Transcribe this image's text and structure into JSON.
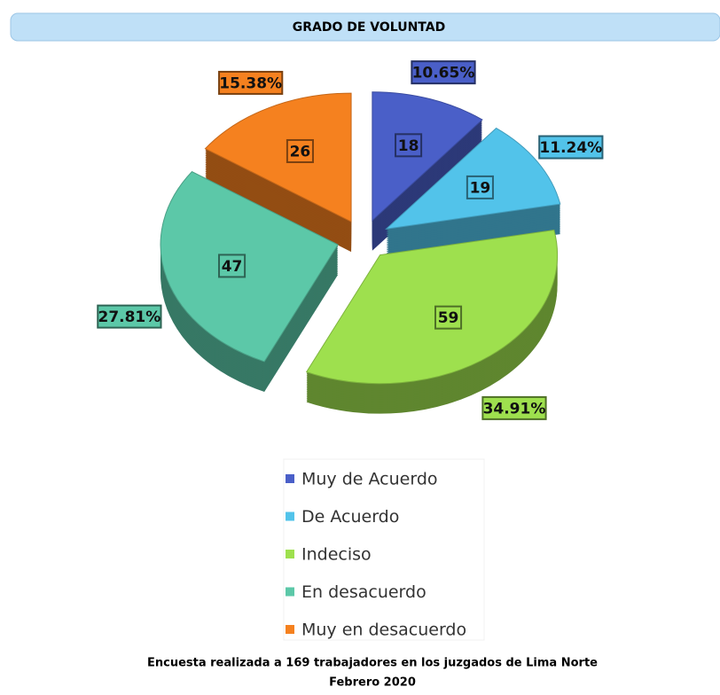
{
  "chart_data": {
    "type": "pie",
    "title": "GRADO DE VOLUNTAD",
    "categories": [
      "Muy de Acuerdo",
      "De Acuerdo",
      "Indeciso",
      "En desacuerdo",
      "Muy en desacuerdo"
    ],
    "values": [
      18,
      19,
      59,
      47,
      26
    ],
    "percent_labels": [
      "10.65%",
      "11.24%",
      "34.91%",
      "27.81%",
      "15.38%"
    ],
    "colors": [
      "#4a5fc8",
      "#52c3ea",
      "#9ee04e",
      "#5cc8a8",
      "#f5811f"
    ],
    "legend": "bottom",
    "footnote": [
      "Encuesta realizada a 169 trabajadores en los juzgados de Lima Norte",
      "Febrero 2020"
    ]
  }
}
